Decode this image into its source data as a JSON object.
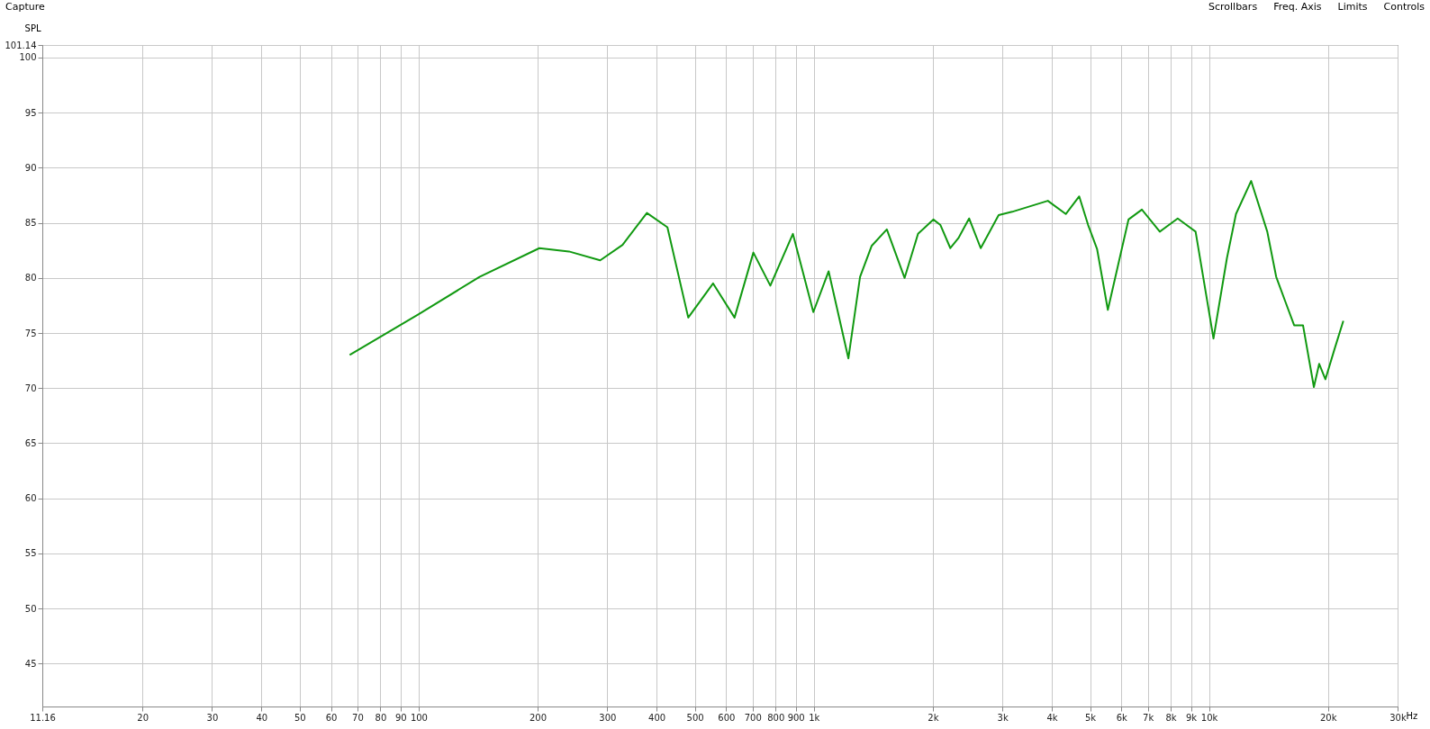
{
  "chart_data": {
    "type": "line",
    "ylabel": "SPL",
    "annotations": [
      "Capture",
      "Scrollbars",
      "Freq. Axis",
      "Limits",
      "Controls"
    ],
    "x": [
      66.9,
      100,
      142.6,
      202,
      240,
      288,
      328,
      378,
      426,
      481,
      556,
      630,
      703,
      776,
      885,
      997,
      1090,
      1223,
      1309,
      1400,
      1530,
      1697,
      1835,
      2006,
      2091,
      2215,
      2321,
      2471,
      2644,
      2935,
      3174,
      3909,
      4340,
      4694,
      4944,
      5210,
      5546,
      5873,
      6255,
      6763,
      7506,
      8332,
      9247,
      10263,
      11100,
      11700,
      12780,
      14040,
      14790,
      15580,
      16420,
      17290,
      18420,
      19000,
      19700,
      20760,
      21870
    ],
    "series": [
      {
        "color": "#119911",
        "values": [
          73.0,
          76.7,
          80.1,
          82.7,
          82.4,
          81.6,
          83.0,
          85.9,
          84.6,
          76.4,
          79.5,
          76.4,
          82.3,
          79.3,
          84.0,
          76.9,
          80.6,
          72.7,
          80.1,
          82.9,
          84.4,
          80.0,
          84.0,
          85.3,
          84.8,
          82.7,
          83.6,
          85.4,
          82.7,
          85.7,
          86.0,
          87.0,
          85.8,
          87.4,
          84.8,
          82.6,
          77.1,
          81.0,
          85.3,
          86.2,
          84.2,
          85.4,
          84.2,
          74.5,
          81.8,
          85.8,
          88.8,
          84.2,
          80.1,
          77.9,
          75.7,
          75.7,
          70.1,
          72.2,
          70.8,
          73.5,
          76.1
        ]
      }
    ],
    "log": "x",
    "xlim": [
      11.16,
      30000
    ],
    "xticks": [
      {
        "value": 11.16,
        "label": "11.16"
      },
      20,
      30,
      40,
      50,
      60,
      70,
      80,
      90,
      100,
      200,
      300,
      400,
      500,
      600,
      700,
      800,
      900,
      {
        "value": 1000,
        "label": "1k"
      },
      {
        "value": 2000,
        "label": "2k"
      },
      {
        "value": 3000,
        "label": "3k"
      },
      {
        "value": 4000,
        "label": "4k"
      },
      {
        "value": 5000,
        "label": "5k"
      },
      {
        "value": 6000,
        "label": "6k"
      },
      {
        "value": 7000,
        "label": "7k"
      },
      {
        "value": 8000,
        "label": "8k"
      },
      {
        "value": 9000,
        "label": "9k"
      },
      {
        "value": 10000,
        "label": "10k"
      },
      {
        "value": 20000,
        "label": "20k"
      },
      {
        "value": 30000,
        "label": "30k"
      }
    ],
    "xlabel": "Hz",
    "ylim": [
      41.1,
      101.14
    ],
    "yticks": [
      45,
      50,
      55,
      60,
      65,
      70,
      75,
      80,
      85,
      90,
      95,
      100,
      {
        "value": 101.14,
        "label": "101.14"
      }
    ],
    "grid": true,
    "marker": "none",
    "line_style": "solid"
  }
}
